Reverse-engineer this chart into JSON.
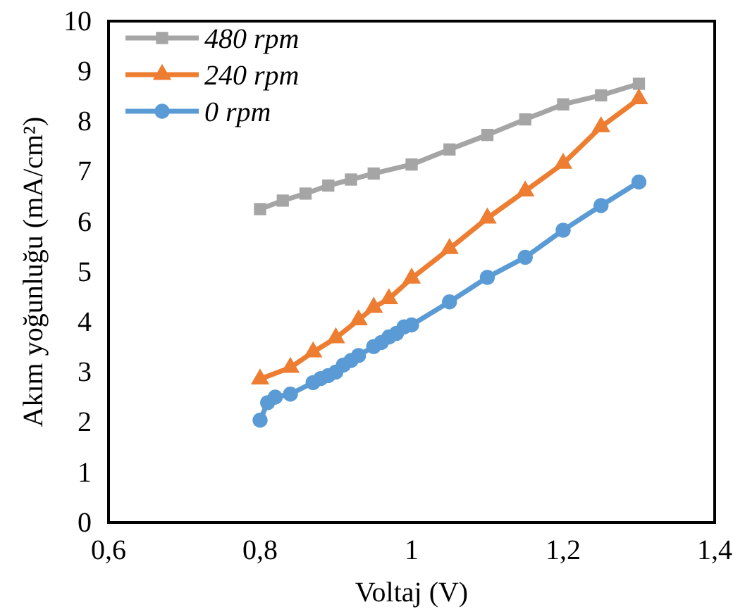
{
  "chart_data": {
    "type": "line",
    "xlabel": "Voltaj (V)",
    "ylabel": "Akım yoğunluğu (mA/cm²)",
    "xlim": [
      0.6,
      1.4
    ],
    "xticks": [
      {
        "value": 0.6,
        "label": "0,6"
      },
      {
        "value": 0.8,
        "label": "0,8"
      },
      1,
      {
        "value": 1.2,
        "label": "1,2"
      },
      {
        "value": 1.4,
        "label": "1,4"
      }
    ],
    "ylim": [
      0,
      10
    ],
    "yticks": [
      0,
      1,
      2,
      3,
      4,
      5,
      6,
      7,
      8,
      9,
      10
    ],
    "grid": false,
    "legend": "top left",
    "series": [
      {
        "name": "480 rpm",
        "color": "#a5a5a5",
        "marker": "square",
        "x": [
          0.8,
          0.83,
          0.86,
          0.89,
          0.92,
          0.95,
          1.0,
          1.05,
          1.1,
          1.15,
          1.2,
          1.25,
          1.3
        ],
        "values": [
          6.25,
          6.42,
          6.56,
          6.72,
          6.84,
          6.96,
          7.14,
          7.44,
          7.73,
          8.04,
          8.34,
          8.52,
          8.75
        ]
      },
      {
        "name": "240 rpm",
        "color": "#ed7d31",
        "marker": "triangle",
        "x": [
          0.8,
          0.84,
          0.87,
          0.9,
          0.93,
          0.95,
          0.97,
          1.0,
          1.05,
          1.1,
          1.15,
          1.2,
          1.25,
          1.3
        ],
        "values": [
          2.86,
          3.09,
          3.4,
          3.68,
          4.04,
          4.29,
          4.46,
          4.87,
          5.46,
          6.07,
          6.61,
          7.16,
          7.89,
          8.45
        ]
      },
      {
        "name": "0 rpm",
        "color": "#5b9bd5",
        "marker": "circle",
        "x": [
          0.8,
          0.81,
          0.82,
          0.84,
          0.87,
          0.88,
          0.89,
          0.9,
          0.91,
          0.92,
          0.93,
          0.95,
          0.96,
          0.97,
          0.98,
          0.99,
          1.0,
          1.05,
          1.1,
          1.15,
          1.2,
          1.25,
          1.3
        ],
        "values": [
          2.04,
          2.39,
          2.5,
          2.56,
          2.79,
          2.87,
          2.93,
          3.0,
          3.14,
          3.23,
          3.33,
          3.51,
          3.59,
          3.7,
          3.77,
          3.9,
          3.94,
          4.4,
          4.89,
          5.29,
          5.83,
          6.32,
          6.79
        ]
      }
    ]
  }
}
